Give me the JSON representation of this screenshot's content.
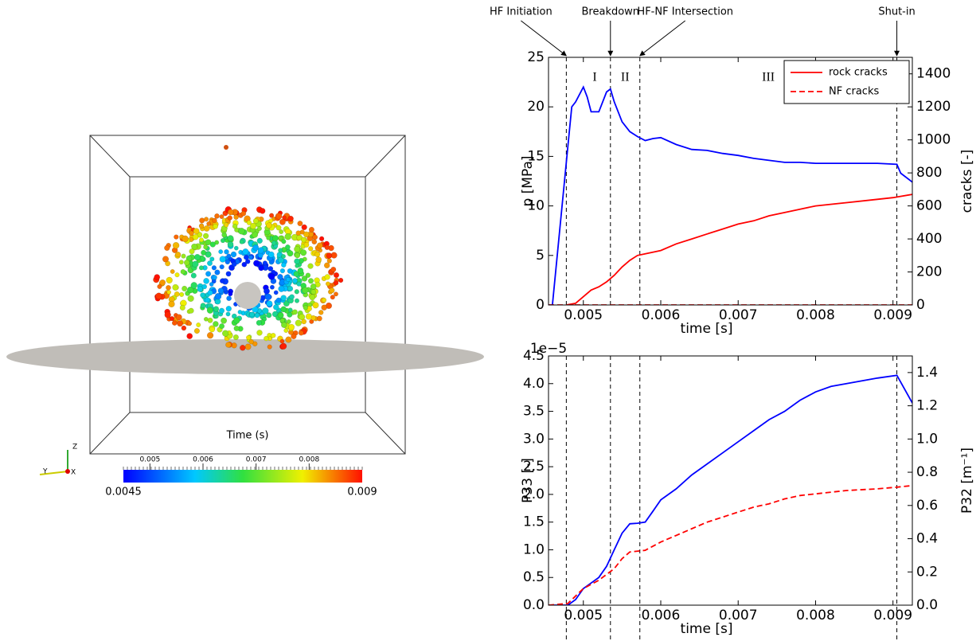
{
  "view": {
    "colorbar_title": "Time (s)",
    "colorbar_range": [
      0.0045,
      0.009
    ],
    "colorbar_ticks": [
      0.005,
      0.006,
      0.007,
      0.008
    ],
    "axes_labels": [
      "Z",
      "Y",
      "X"
    ]
  },
  "chart_data": [
    {
      "type": "line",
      "xlabel": "time [s]",
      "ylabel": "p [MPa]",
      "y2label": "cracks [-]",
      "ylabel_color": "#0000ff",
      "y2label_color": "#ff0000",
      "xlim": [
        0.00455,
        0.00925
      ],
      "xticks": [
        0.005,
        0.006,
        0.007,
        0.008,
        0.009
      ],
      "ylim": [
        0,
        25
      ],
      "yticks": [
        0,
        5,
        10,
        15,
        20,
        25
      ],
      "y2lim": [
        0,
        1500
      ],
      "y2ticks": [
        0,
        200,
        400,
        600,
        800,
        1000,
        1200,
        1400
      ],
      "legend": "upper right",
      "events": [
        {
          "x": 0.00478,
          "label": "HF Initiation"
        },
        {
          "x": 0.00535,
          "label": "Breakdown"
        },
        {
          "x": 0.00573,
          "label": "HF-NF Intersection"
        },
        {
          "x": 0.00905,
          "label": "Shut-in"
        }
      ],
      "stages": [
        "I",
        "II",
        "III"
      ],
      "series": [
        {
          "color": "#0000ff",
          "style": "solid",
          "axis": "y",
          "x": [
            0.00455,
            0.0046,
            0.0047,
            0.0048,
            0.00485,
            0.0049,
            0.005,
            0.00505,
            0.0051,
            0.0052,
            0.0053,
            0.00535,
            0.0054,
            0.0055,
            0.0056,
            0.0057,
            0.0058,
            0.0059,
            0.006,
            0.0062,
            0.0064,
            0.0066,
            0.0068,
            0.007,
            0.0072,
            0.0074,
            0.0076,
            0.0078,
            0.008,
            0.0084,
            0.0088,
            0.00905,
            0.0091,
            0.00925
          ],
          "values": [
            0,
            0,
            8,
            16,
            20,
            20.5,
            22,
            21,
            19.5,
            19.5,
            21.5,
            21.8,
            20.5,
            18.5,
            17.5,
            17,
            16.6,
            16.8,
            16.9,
            16.2,
            15.7,
            15.6,
            15.3,
            15.1,
            14.8,
            14.6,
            14.4,
            14.4,
            14.3,
            14.3,
            14.3,
            14.2,
            13.3,
            12.4
          ]
        },
        {
          "name": "rock cracks",
          "color": "#ff0000",
          "style": "solid",
          "axis": "y2",
          "x": [
            0.00478,
            0.0049,
            0.005,
            0.0051,
            0.0052,
            0.0053,
            0.0054,
            0.0055,
            0.0056,
            0.0057,
            0.0058,
            0.006,
            0.0062,
            0.0064,
            0.0066,
            0.0068,
            0.007,
            0.0072,
            0.0074,
            0.0076,
            0.0078,
            0.008,
            0.0084,
            0.0088,
            0.009,
            0.00925
          ],
          "values": [
            0,
            10,
            50,
            90,
            110,
            140,
            180,
            230,
            270,
            300,
            310,
            330,
            370,
            400,
            430,
            460,
            490,
            510,
            540,
            560,
            580,
            600,
            620,
            640,
            650,
            670
          ]
        },
        {
          "name": "NF cracks",
          "color": "#ff0000",
          "style": "dashed",
          "axis": "y2",
          "x": [
            0.00455,
            0.00925
          ],
          "values": [
            0,
            0
          ]
        }
      ]
    },
    {
      "type": "line",
      "xlabel": "time [s]",
      "ylabel": "P33 [-]",
      "y2label": "P32 [m⁻¹]",
      "ylabel_color": "#0000ff",
      "y2label_color": "#ff0000",
      "y_offset_label": "1e−5",
      "xlim": [
        0.00455,
        0.00925
      ],
      "xticks": [
        0.005,
        0.006,
        0.007,
        0.008,
        0.009
      ],
      "ylim": [
        0,
        4.5e-05
      ],
      "yticks": [
        {
          "value": 0,
          "label": "0.0"
        },
        {
          "value": 5e-06,
          "label": "0.5"
        },
        {
          "value": 1e-05,
          "label": "1.0"
        },
        {
          "value": 1.5e-05,
          "label": "1.5"
        },
        {
          "value": 2e-05,
          "label": "2.0"
        },
        {
          "value": 2.5e-05,
          "label": "2.5"
        },
        {
          "value": 3e-05,
          "label": "3.0"
        },
        {
          "value": 3.5e-05,
          "label": "3.5"
        },
        {
          "value": 4e-05,
          "label": "4.0"
        },
        {
          "value": 4.5e-05,
          "label": "4.5"
        }
      ],
      "y2lim": [
        0,
        1.5
      ],
      "y2ticks": [
        {
          "value": 0,
          "label": "0.0"
        },
        0.2,
        0.4,
        0.6,
        0.8,
        {
          "value": 1,
          "label": "1.0"
        },
        1.2,
        1.4
      ],
      "vlines": [
        0.00478,
        0.00535,
        0.00573,
        0.00905
      ],
      "series": [
        {
          "color": "#0000ff",
          "style": "solid",
          "axis": "y",
          "x": [
            0.00455,
            0.0048,
            0.0049,
            0.005,
            0.0051,
            0.0052,
            0.0053,
            0.0054,
            0.0055,
            0.0056,
            0.0057,
            0.0058,
            0.0059,
            0.006,
            0.0062,
            0.0064,
            0.0066,
            0.0068,
            0.007,
            0.0072,
            0.0074,
            0.0076,
            0.0078,
            0.008,
            0.0082,
            0.0084,
            0.0086,
            0.0088,
            0.00905,
            0.00925
          ],
          "values": [
            0,
            0,
            1e-06,
            3e-06,
            4e-06,
            5e-06,
            7e-06,
            1e-05,
            1.3e-05,
            1.47e-05,
            1.48e-05,
            1.5e-05,
            1.7e-05,
            1.9e-05,
            2.1e-05,
            2.35e-05,
            2.55e-05,
            2.75e-05,
            2.95e-05,
            3.15e-05,
            3.35e-05,
            3.5e-05,
            3.7e-05,
            3.85e-05,
            3.95e-05,
            4e-05,
            4.05e-05,
            4.1e-05,
            4.15e-05,
            3.65e-05
          ]
        },
        {
          "color": "#ff0000",
          "style": "dashed",
          "axis": "y2",
          "x": [
            0.00455,
            0.0048,
            0.005,
            0.0052,
            0.0054,
            0.0055,
            0.0056,
            0.0058,
            0.006,
            0.0062,
            0.0064,
            0.0066,
            0.0068,
            0.007,
            0.0072,
            0.0074,
            0.0076,
            0.0078,
            0.008,
            0.0084,
            0.0088,
            0.00905,
            0.00925
          ],
          "values": [
            0,
            0.01,
            0.1,
            0.15,
            0.22,
            0.28,
            0.32,
            0.33,
            0.38,
            0.42,
            0.46,
            0.5,
            0.53,
            0.56,
            0.59,
            0.61,
            0.64,
            0.66,
            0.67,
            0.69,
            0.7,
            0.71,
            0.72
          ]
        }
      ]
    }
  ]
}
